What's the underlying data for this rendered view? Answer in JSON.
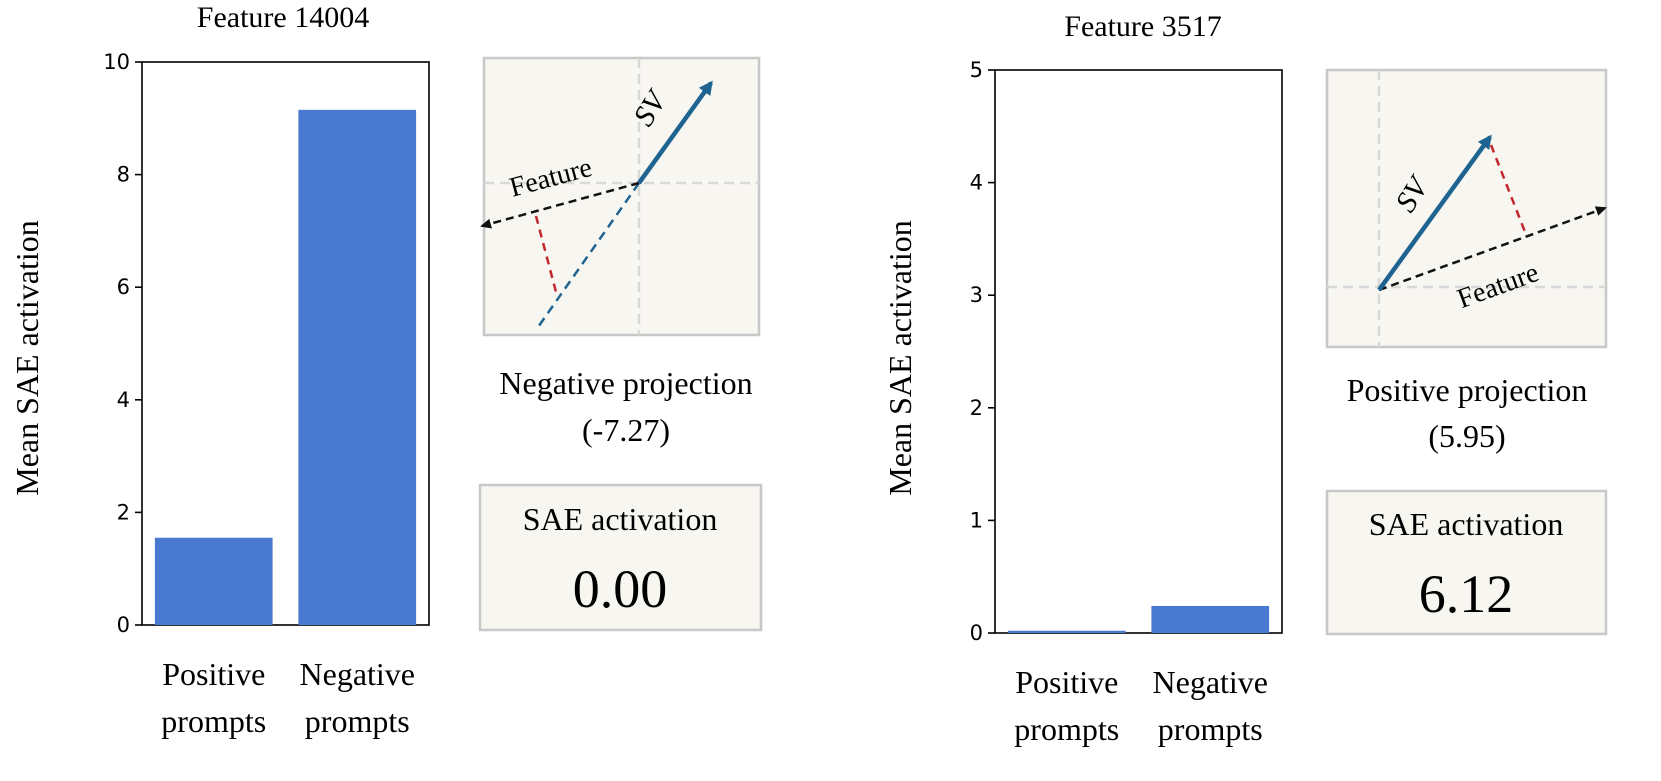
{
  "chart_data": [
    {
      "type": "bar",
      "title": "Feature 14004",
      "ylabel": "Mean SAE activation",
      "xlabel": "",
      "categories": [
        "Positive prompts",
        "Negative prompts"
      ],
      "category_lines": [
        [
          "Positive",
          "prompts"
        ],
        [
          "Negative",
          "prompts"
        ]
      ],
      "values": [
        1.55,
        9.15
      ],
      "ylim": [
        0,
        10
      ],
      "yticks": [
        "0",
        "2",
        "4",
        "6",
        "8",
        "10"
      ],
      "bar_color": "#4878cf",
      "grid": false
    },
    {
      "type": "bar",
      "title": "Feature 3517",
      "ylabel": "Mean SAE activation",
      "xlabel": "",
      "categories": [
        "Positive prompts",
        "Negative prompts"
      ],
      "category_lines": [
        [
          "Positive",
          "prompts"
        ],
        [
          "Negative",
          "prompts"
        ]
      ],
      "values": [
        0.02,
        0.24
      ],
      "ylim": [
        0,
        5
      ],
      "yticks": [
        "0",
        "1",
        "2",
        "3",
        "4",
        "5"
      ],
      "bar_color": "#4878cf",
      "grid": false
    }
  ],
  "insets": [
    {
      "sv_label": "SV",
      "feature_label": "Feature",
      "projection_label": "Negative projection",
      "projection_value": "(-7.27)",
      "activation_title": "SAE activation",
      "activation_value": "0.00"
    },
    {
      "sv_label": "SV",
      "feature_label": "Feature",
      "projection_label": "Positive projection",
      "projection_value": "(5.95)",
      "activation_title": "SAE activation",
      "activation_value": "6.12"
    }
  ],
  "colors": {
    "inset_background": "#f7f6f0",
    "inset_border": "#c8c8c8",
    "sv_arrow": "#1f6391",
    "feature_arrow": "#111111",
    "projection_line": "#c0282d",
    "guide_line": "#d8d8d8"
  }
}
